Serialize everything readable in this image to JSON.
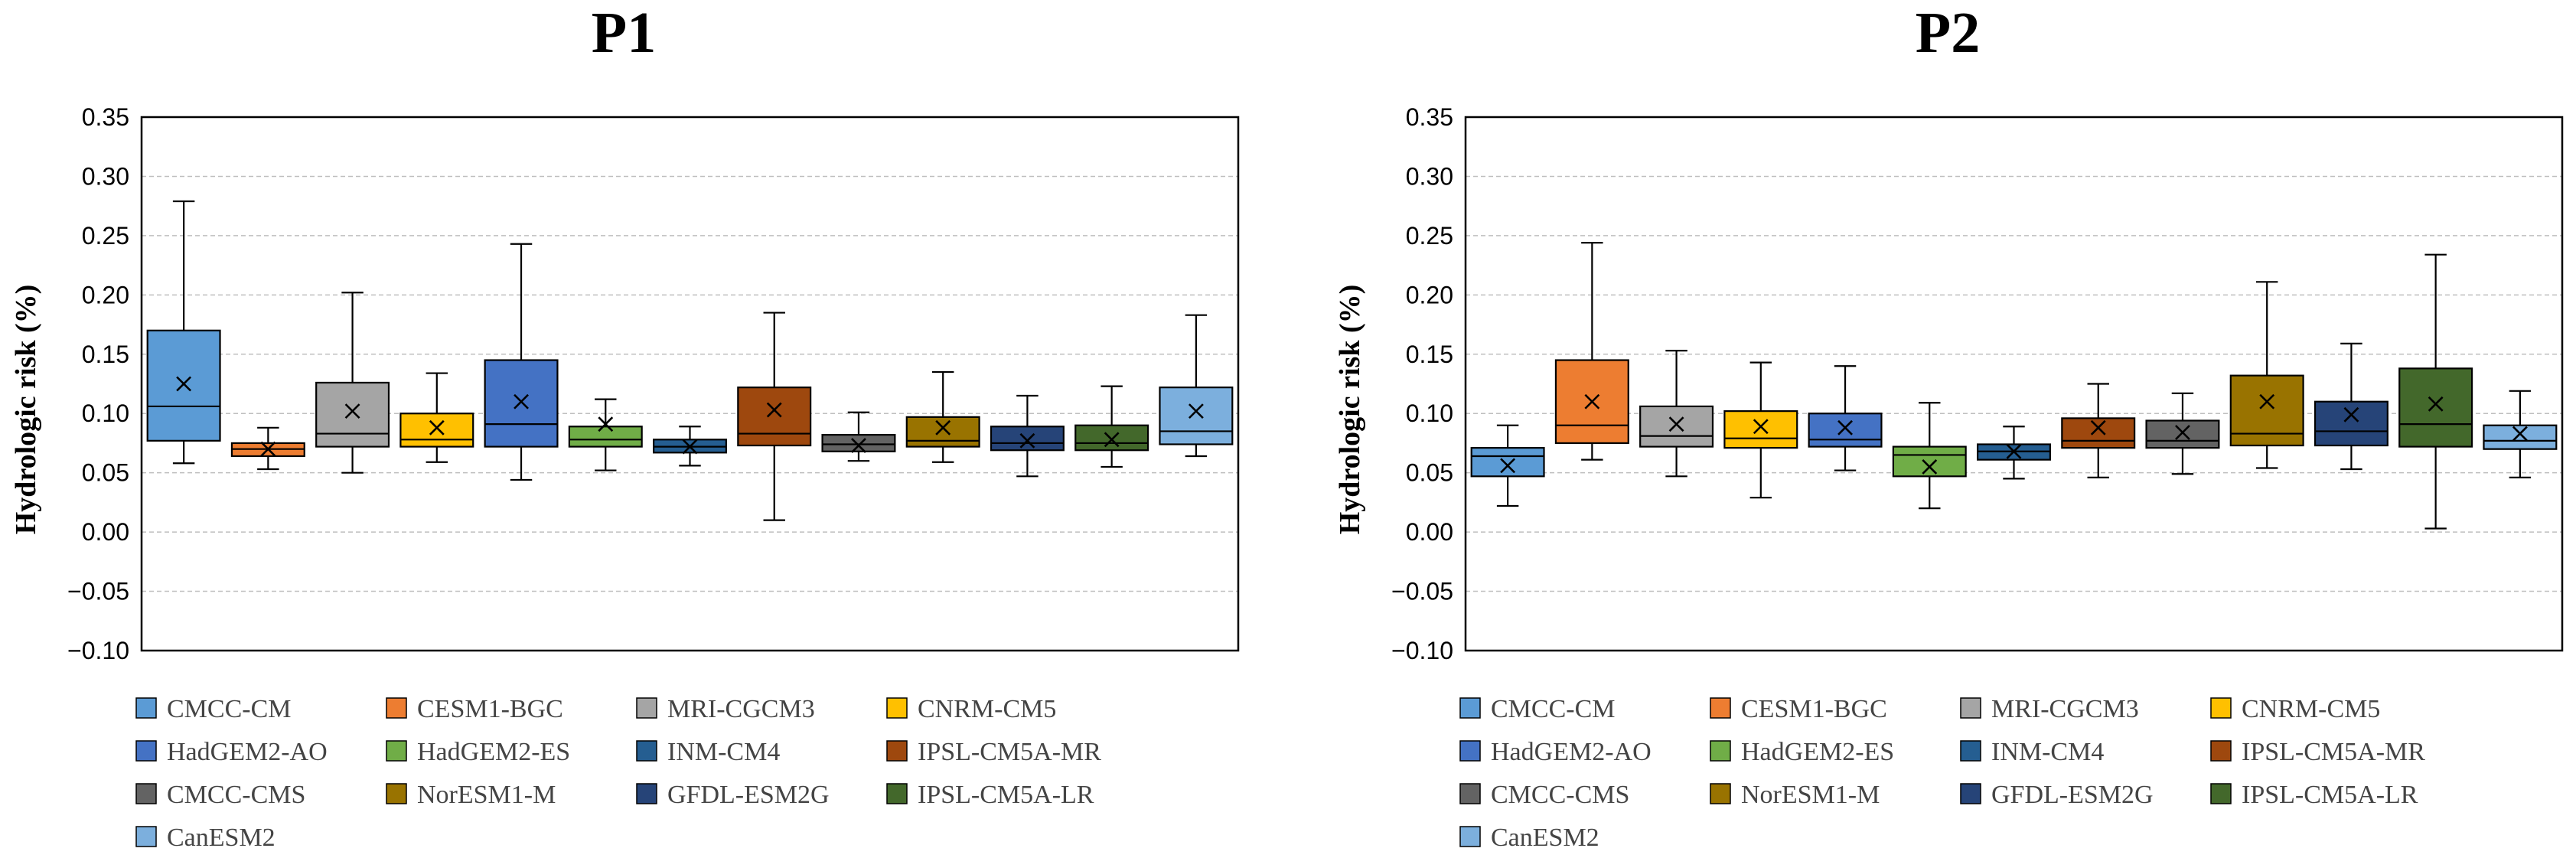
{
  "models": [
    {
      "name": "CMCC-CM",
      "color": "#5b9bd5"
    },
    {
      "name": "CESM1-BGC",
      "color": "#ed7d31"
    },
    {
      "name": "MRI-CGCM3",
      "color": "#a5a5a5"
    },
    {
      "name": "CNRM-CM5",
      "color": "#ffc000"
    },
    {
      "name": "HadGEM2-AO",
      "color": "#4472c4"
    },
    {
      "name": "HadGEM2-ES",
      "color": "#70ad47"
    },
    {
      "name": "INM-CM4",
      "color": "#255e91"
    },
    {
      "name": "IPSL-CM5A-MR",
      "color": "#9e480e"
    },
    {
      "name": "CMCC-CMS",
      "color": "#636363"
    },
    {
      "name": "NorESM1-M",
      "color": "#997300"
    },
    {
      "name": "GFDL-ESM2G",
      "color": "#264478"
    },
    {
      "name": "IPSL-CM5A-LR",
      "color": "#43682b"
    },
    {
      "name": "CanESM2",
      "color": "#7cafdd"
    }
  ],
  "chart_data": [
    {
      "type": "boxplot",
      "title": "P1",
      "ylabel": "Hydrologic risk (%)",
      "xlabel": "",
      "ylim": [
        -0.1,
        0.35
      ],
      "yticks": [
        "0.35",
        "0.30",
        "0.25",
        "0.20",
        "0.15",
        "0.10",
        "0.05",
        "0.00",
        "−0.05",
        "−0.10"
      ],
      "ytick_values": [
        0.35,
        0.3,
        0.25,
        0.2,
        0.15,
        0.1,
        0.05,
        0.0,
        -0.05,
        -0.1
      ],
      "grid": true,
      "legend_position": "bottom",
      "series": [
        {
          "name": "CMCC-CM",
          "min": 0.058,
          "q1": 0.077,
          "median": 0.106,
          "q3": 0.17,
          "max": 0.279,
          "mean": 0.125
        },
        {
          "name": "CESM1-BGC",
          "min": 0.053,
          "q1": 0.064,
          "median": 0.07,
          "q3": 0.075,
          "max": 0.088,
          "mean": 0.07
        },
        {
          "name": "MRI-CGCM3",
          "min": 0.05,
          "q1": 0.072,
          "median": 0.083,
          "q3": 0.126,
          "max": 0.202,
          "mean": 0.102
        },
        {
          "name": "CNRM-CM5",
          "min": 0.059,
          "q1": 0.072,
          "median": 0.078,
          "q3": 0.1,
          "max": 0.134,
          "mean": 0.088
        },
        {
          "name": "HadGEM2-AO",
          "min": 0.044,
          "q1": 0.072,
          "median": 0.091,
          "q3": 0.145,
          "max": 0.243,
          "mean": 0.11
        },
        {
          "name": "HadGEM2-ES",
          "min": 0.052,
          "q1": 0.072,
          "median": 0.078,
          "q3": 0.089,
          "max": 0.112,
          "mean": 0.091
        },
        {
          "name": "INM-CM4",
          "min": 0.056,
          "q1": 0.067,
          "median": 0.072,
          "q3": 0.078,
          "max": 0.089,
          "mean": 0.072
        },
        {
          "name": "IPSL-CM5A-MR",
          "min": 0.01,
          "q1": 0.073,
          "median": 0.083,
          "q3": 0.122,
          "max": 0.185,
          "mean": 0.103
        },
        {
          "name": "CMCC-CMS",
          "min": 0.06,
          "q1": 0.068,
          "median": 0.074,
          "q3": 0.082,
          "max": 0.101,
          "mean": 0.073
        },
        {
          "name": "NorESM1-M",
          "min": 0.059,
          "q1": 0.072,
          "median": 0.077,
          "q3": 0.097,
          "max": 0.135,
          "mean": 0.088
        },
        {
          "name": "GFDL-ESM2G",
          "min": 0.047,
          "q1": 0.069,
          "median": 0.075,
          "q3": 0.089,
          "max": 0.115,
          "mean": 0.077
        },
        {
          "name": "IPSL-CM5A-LR",
          "min": 0.055,
          "q1": 0.069,
          "median": 0.075,
          "q3": 0.09,
          "max": 0.123,
          "mean": 0.078
        },
        {
          "name": "CanESM2",
          "min": 0.064,
          "q1": 0.074,
          "median": 0.085,
          "q3": 0.122,
          "max": 0.183,
          "mean": 0.102
        }
      ]
    },
    {
      "type": "boxplot",
      "title": "P2",
      "ylabel": "Hydrologic risk (%)",
      "xlabel": "",
      "ylim": [
        -0.1,
        0.35
      ],
      "yticks": [
        "0.35",
        "0.30",
        "0.25",
        "0.20",
        "0.15",
        "0.10",
        "0.05",
        "0.00",
        "−0.05",
        "−0.10"
      ],
      "ytick_values": [
        0.35,
        0.3,
        0.25,
        0.2,
        0.15,
        0.1,
        0.05,
        0.0,
        -0.05,
        -0.1
      ],
      "grid": true,
      "legend_position": "bottom",
      "series": [
        {
          "name": "CMCC-CM",
          "min": 0.022,
          "q1": 0.047,
          "median": 0.064,
          "q3": 0.071,
          "max": 0.09,
          "mean": 0.056
        },
        {
          "name": "CESM1-BGC",
          "min": 0.061,
          "q1": 0.075,
          "median": 0.09,
          "q3": 0.145,
          "max": 0.244,
          "mean": 0.11
        },
        {
          "name": "MRI-CGCM3",
          "min": 0.047,
          "q1": 0.072,
          "median": 0.081,
          "q3": 0.106,
          "max": 0.153,
          "mean": 0.091
        },
        {
          "name": "CNRM-CM5",
          "min": 0.029,
          "q1": 0.071,
          "median": 0.079,
          "q3": 0.102,
          "max": 0.143,
          "mean": 0.089
        },
        {
          "name": "HadGEM2-AO",
          "min": 0.052,
          "q1": 0.072,
          "median": 0.078,
          "q3": 0.1,
          "max": 0.14,
          "mean": 0.088
        },
        {
          "name": "HadGEM2-ES",
          "min": 0.02,
          "q1": 0.047,
          "median": 0.065,
          "q3": 0.072,
          "max": 0.109,
          "mean": 0.055
        },
        {
          "name": "INM-CM4",
          "min": 0.045,
          "q1": 0.061,
          "median": 0.068,
          "q3": 0.074,
          "max": 0.089,
          "mean": 0.068
        },
        {
          "name": "IPSL-CM5A-MR",
          "min": 0.046,
          "q1": 0.071,
          "median": 0.077,
          "q3": 0.096,
          "max": 0.125,
          "mean": 0.088
        },
        {
          "name": "CMCC-CMS",
          "min": 0.049,
          "q1": 0.071,
          "median": 0.077,
          "q3": 0.094,
          "max": 0.117,
          "mean": 0.084
        },
        {
          "name": "NorESM1-M",
          "min": 0.054,
          "q1": 0.073,
          "median": 0.083,
          "q3": 0.132,
          "max": 0.211,
          "mean": 0.11
        },
        {
          "name": "GFDL-ESM2G",
          "min": 0.053,
          "q1": 0.073,
          "median": 0.085,
          "q3": 0.11,
          "max": 0.159,
          "mean": 0.099
        },
        {
          "name": "IPSL-CM5A-LR",
          "min": 0.003,
          "q1": 0.072,
          "median": 0.091,
          "q3": 0.138,
          "max": 0.234,
          "mean": 0.108
        },
        {
          "name": "CanESM2",
          "min": 0.046,
          "q1": 0.07,
          "median": 0.077,
          "q3": 0.09,
          "max": 0.119,
          "mean": 0.083
        }
      ]
    }
  ]
}
